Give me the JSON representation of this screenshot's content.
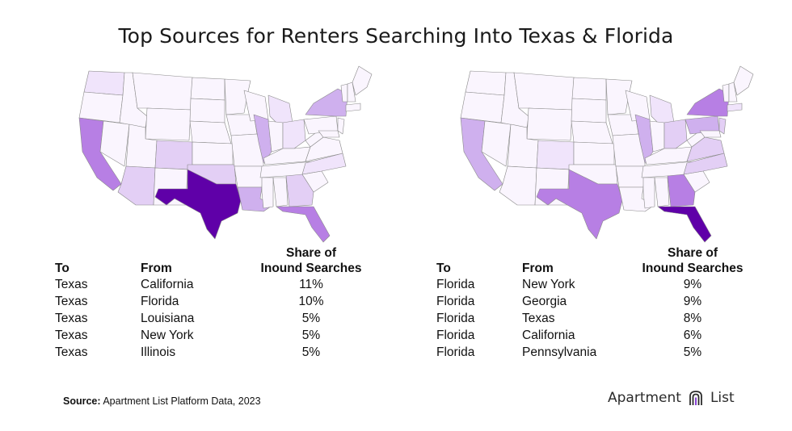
{
  "title": "Top Sources for Renters Searching Into Texas & Florida",
  "colors": {
    "shade_1": "#faf5fe",
    "shade_2": "#f0e4fb",
    "shade_3": "#e3cff5",
    "shade_4": "#cfb0ee",
    "shade_5": "#b77fe4",
    "shade_max": "#5f00a8",
    "border": "#8a8a8a"
  },
  "headers": {
    "to": "To",
    "from": "From",
    "share_line1": "Share of",
    "share_line2": "Inound Searches"
  },
  "chart_data": [
    {
      "type": "table",
      "to": "Texas",
      "rows": [
        {
          "to": "Texas",
          "from": "California",
          "share": "11%"
        },
        {
          "to": "Texas",
          "from": "Florida",
          "share": "10%"
        },
        {
          "to": "Texas",
          "from": "Louisiana",
          "share": "5%"
        },
        {
          "to": "Texas",
          "from": "New York",
          "share": "5%"
        },
        {
          "to": "Texas",
          "from": "Illinois",
          "share": "5%"
        }
      ],
      "map_highlight": "Texas",
      "map_shading": {
        "California": 5,
        "Florida": 5,
        "Louisiana": 4,
        "New York": 4,
        "Illinois": 4,
        "Arizona": 3,
        "Oklahoma": 3,
        "Colorado": 3,
        "Georgia": 3,
        "Washington": 2,
        "Ohio": 2,
        "North Carolina": 2,
        "Michigan": 2
      }
    },
    {
      "type": "table",
      "to": "Florida",
      "rows": [
        {
          "to": "Florida",
          "from": "New York",
          "share": "9%"
        },
        {
          "to": "Florida",
          "from": "Georgia",
          "share": "9%"
        },
        {
          "to": "Florida",
          "from": "Texas",
          "share": "8%"
        },
        {
          "to": "Florida",
          "from": "California",
          "share": "6%"
        },
        {
          "to": "Florida",
          "from": "Pennsylvania",
          "share": "5%"
        }
      ],
      "map_highlight": "Florida",
      "map_shading": {
        "New York": 5,
        "Georgia": 5,
        "Texas": 5,
        "California": 4,
        "Pennsylvania": 4,
        "Illinois": 4,
        "Ohio": 3,
        "New Jersey": 3,
        "North Carolina": 3,
        "Virginia": 3,
        "Michigan": 2,
        "Colorado": 2,
        "Massachusetts": 2
      }
    }
  ],
  "source": {
    "label": "Source:",
    "text": " Apartment List Platform Data, 2023"
  },
  "logo": {
    "text_left": "Apartment",
    "text_right": "List",
    "icon": "apartment-list-logo-icon"
  }
}
